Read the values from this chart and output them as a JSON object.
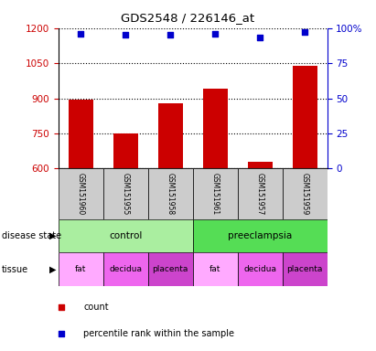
{
  "title": "GDS2548 / 226146_at",
  "samples": [
    "GSM151960",
    "GSM151955",
    "GSM151958",
    "GSM151961",
    "GSM151957",
    "GSM151959"
  ],
  "counts": [
    893,
    748,
    880,
    940,
    628,
    1040
  ],
  "percentile_ranks": [
    96,
    95,
    95,
    96,
    93,
    97
  ],
  "ylim_left": [
    600,
    1200
  ],
  "ylim_right": [
    0,
    100
  ],
  "yticks_left": [
    600,
    750,
    900,
    1050,
    1200
  ],
  "yticks_right": [
    0,
    25,
    50,
    75,
    100
  ],
  "bar_color": "#cc0000",
  "dot_color": "#0000cc",
  "disease_state": [
    {
      "label": "control",
      "span": [
        0,
        3
      ],
      "color": "#aaeea a"
    },
    {
      "label": "preeclampsia",
      "span": [
        3,
        6
      ],
      "color": "#55dd55"
    }
  ],
  "tissue": [
    {
      "label": "fat",
      "span": [
        0,
        1
      ],
      "color": "#ffaaff"
    },
    {
      "label": "decidua",
      "span": [
        1,
        2
      ],
      "color": "#ee66ee"
    },
    {
      "label": "placenta",
      "span": [
        2,
        3
      ],
      "color": "#cc44cc"
    },
    {
      "label": "fat",
      "span": [
        3,
        4
      ],
      "color": "#ffaaff"
    },
    {
      "label": "decidua",
      "span": [
        4,
        5
      ],
      "color": "#ee66ee"
    },
    {
      "label": "placenta",
      "span": [
        5,
        6
      ],
      "color": "#cc44cc"
    }
  ],
  "background_color": "#ffffff",
  "axis_label_color_left": "#cc0000",
  "axis_label_color_right": "#0000cc",
  "xlabel_area_color": "#cccccc"
}
